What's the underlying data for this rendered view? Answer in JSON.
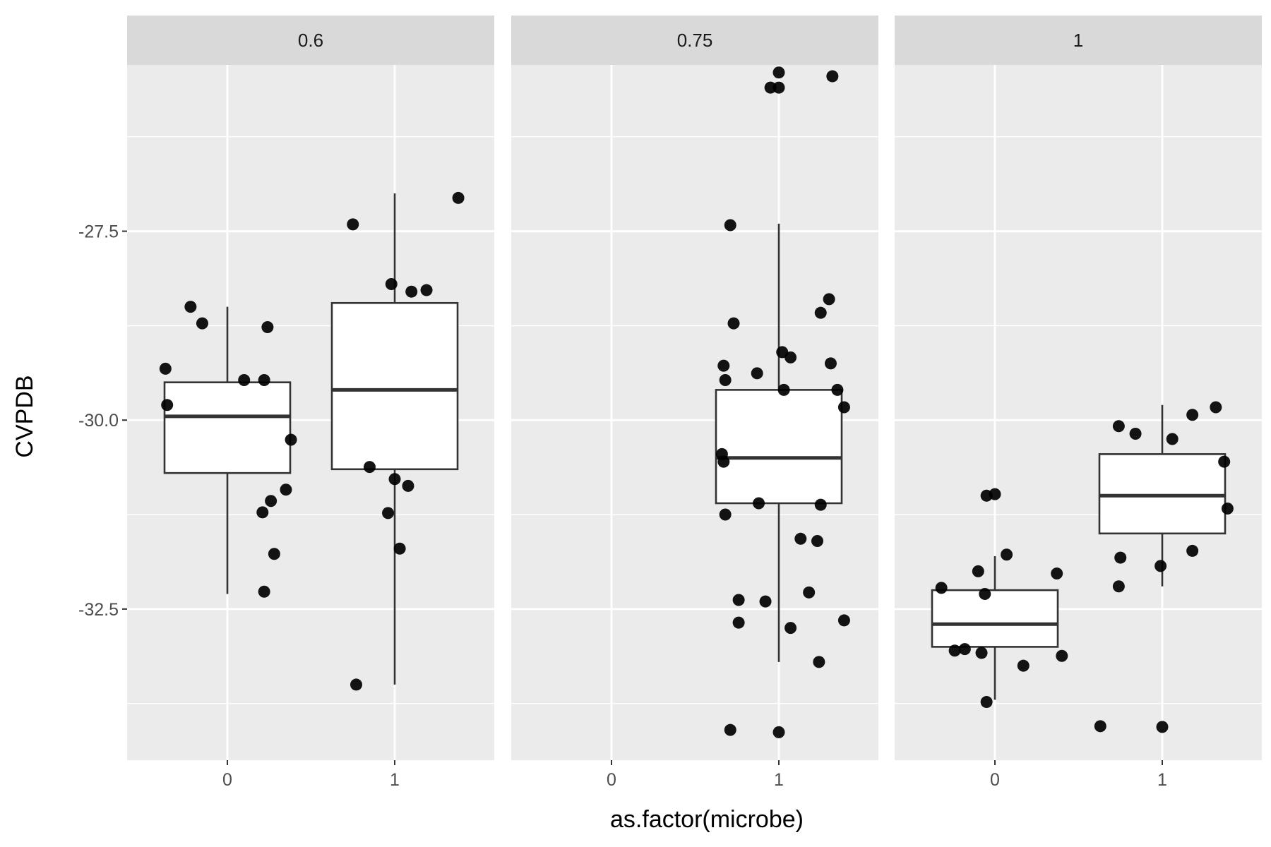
{
  "colors": {
    "panel_background": "#ebebeb",
    "strip_background": "#d9d9d9",
    "grid_line": "#ffffff",
    "box_fill": "#ffffff",
    "box_line": "#333333",
    "point": "#000000",
    "tick_text": "#4d4d4d",
    "tick_mark": "#333333"
  },
  "chart_data": {
    "type": "boxplot",
    "facet_variable": "",
    "xlabel": "as.factor(microbe)",
    "ylabel": "CVPDB",
    "x_categories": [
      "0",
      "1"
    ],
    "ylim": [
      -34.5,
      -25.3
    ],
    "y_ticks": [
      -32.5,
      -30.0,
      -27.5
    ],
    "y_tick_labels": [
      "-32.5",
      "-30.0",
      "-27.5"
    ],
    "grid": true,
    "legend": "none",
    "panels": [
      {
        "label": "0.6",
        "boxes": [
          {
            "x": "0",
            "whisker_low": -32.3,
            "q1": -30.7,
            "median": -29.95,
            "q3": -29.5,
            "whisker_high": -28.5
          },
          {
            "x": "1",
            "whisker_low": -33.5,
            "q1": -30.65,
            "median": -29.6,
            "q3": -28.45,
            "whisker_high": -27.0
          }
        ],
        "points": [
          {
            "x": -0.37,
            "y": -29.32
          },
          {
            "x": -0.36,
            "y": -29.8
          },
          {
            "x": -0.22,
            "y": -28.5
          },
          {
            "x": -0.15,
            "y": -28.72
          },
          {
            "x": 0.1,
            "y": -29.47
          },
          {
            "x": 0.22,
            "y": -29.47
          },
          {
            "x": 0.24,
            "y": -28.77
          },
          {
            "x": 0.38,
            "y": -30.26
          },
          {
            "x": 0.35,
            "y": -30.92
          },
          {
            "x": 0.26,
            "y": -31.07
          },
          {
            "x": 0.21,
            "y": -31.22
          },
          {
            "x": 0.28,
            "y": -31.77
          },
          {
            "x": 0.22,
            "y": -32.27
          },
          {
            "x": 0.75,
            "y": -27.41
          },
          {
            "x": 0.98,
            "y": -28.2
          },
          {
            "x": 1.1,
            "y": -28.3
          },
          {
            "x": 1.19,
            "y": -28.28
          },
          {
            "x": 0.85,
            "y": -30.62
          },
          {
            "x": 1.0,
            "y": -30.78
          },
          {
            "x": 1.08,
            "y": -30.87
          },
          {
            "x": 0.96,
            "y": -31.23
          },
          {
            "x": 1.03,
            "y": -31.7
          },
          {
            "x": 0.77,
            "y": -33.5
          },
          {
            "x": 1.38,
            "y": -27.06
          }
        ]
      },
      {
        "label": "0.75",
        "boxes": [
          {
            "x": "1",
            "whisker_low": -33.2,
            "q1": -31.1,
            "median": -30.5,
            "q3": -29.6,
            "whisker_high": -27.4
          }
        ],
        "points": [
          {
            "x": 0.95,
            "y": -25.6
          },
          {
            "x": 1.0,
            "y": -25.4
          },
          {
            "x": 1.0,
            "y": -25.6
          },
          {
            "x": 1.32,
            "y": -25.45
          },
          {
            "x": 0.71,
            "y": -27.42
          },
          {
            "x": 0.73,
            "y": -28.72
          },
          {
            "x": 1.25,
            "y": -28.58
          },
          {
            "x": 1.3,
            "y": -28.4
          },
          {
            "x": 1.02,
            "y": -29.1
          },
          {
            "x": 1.07,
            "y": -29.17
          },
          {
            "x": 1.31,
            "y": -29.25
          },
          {
            "x": 0.67,
            "y": -29.28
          },
          {
            "x": 0.87,
            "y": -29.38
          },
          {
            "x": 0.68,
            "y": -29.47
          },
          {
            "x": 1.03,
            "y": -29.6
          },
          {
            "x": 1.35,
            "y": -29.6
          },
          {
            "x": 1.39,
            "y": -29.83
          },
          {
            "x": 0.66,
            "y": -30.45
          },
          {
            "x": 0.67,
            "y": -30.55
          },
          {
            "x": 0.88,
            "y": -31.1
          },
          {
            "x": 1.25,
            "y": -31.12
          },
          {
            "x": 0.68,
            "y": -31.25
          },
          {
            "x": 1.13,
            "y": -31.57
          },
          {
            "x": 1.23,
            "y": -31.6
          },
          {
            "x": 1.18,
            "y": -32.28
          },
          {
            "x": 0.76,
            "y": -32.38
          },
          {
            "x": 0.92,
            "y": -32.4
          },
          {
            "x": 0.76,
            "y": -32.68
          },
          {
            "x": 1.39,
            "y": -32.65
          },
          {
            "x": 1.07,
            "y": -32.75
          },
          {
            "x": 1.24,
            "y": -33.2
          },
          {
            "x": 0.71,
            "y": -34.1
          },
          {
            "x": 1.0,
            "y": -34.13
          }
        ]
      },
      {
        "label": "1",
        "boxes": [
          {
            "x": "0",
            "whisker_low": -33.7,
            "q1": -33.0,
            "median": -32.7,
            "q3": -32.25,
            "whisker_high": -31.8
          },
          {
            "x": "1",
            "whisker_low": -32.2,
            "q1": -31.5,
            "median": -31.0,
            "q3": -30.45,
            "whisker_high": -29.8
          }
        ],
        "points": [
          {
            "x": -0.05,
            "y": -31.0
          },
          {
            "x": 0.0,
            "y": -30.98
          },
          {
            "x": 0.07,
            "y": -31.78
          },
          {
            "x": -0.1,
            "y": -32.0
          },
          {
            "x": 0.37,
            "y": -32.03
          },
          {
            "x": -0.32,
            "y": -32.22
          },
          {
            "x": -0.06,
            "y": -32.3
          },
          {
            "x": -0.24,
            "y": -33.05
          },
          {
            "x": -0.18,
            "y": -33.03
          },
          {
            "x": -0.08,
            "y": -33.08
          },
          {
            "x": 0.4,
            "y": -33.12
          },
          {
            "x": 0.17,
            "y": -33.25
          },
          {
            "x": -0.05,
            "y": -33.73
          },
          {
            "x": 0.74,
            "y": -30.08
          },
          {
            "x": 0.84,
            "y": -30.18
          },
          {
            "x": 1.06,
            "y": -30.25
          },
          {
            "x": 1.18,
            "y": -29.93
          },
          {
            "x": 1.32,
            "y": -29.83
          },
          {
            "x": 1.37,
            "y": -30.55
          },
          {
            "x": 1.39,
            "y": -31.17
          },
          {
            "x": 1.18,
            "y": -31.73
          },
          {
            "x": 0.75,
            "y": -31.82
          },
          {
            "x": 0.99,
            "y": -31.93
          },
          {
            "x": 0.74,
            "y": -32.2
          },
          {
            "x": 0.63,
            "y": -34.05
          },
          {
            "x": 1.0,
            "y": -34.06
          }
        ]
      }
    ]
  }
}
